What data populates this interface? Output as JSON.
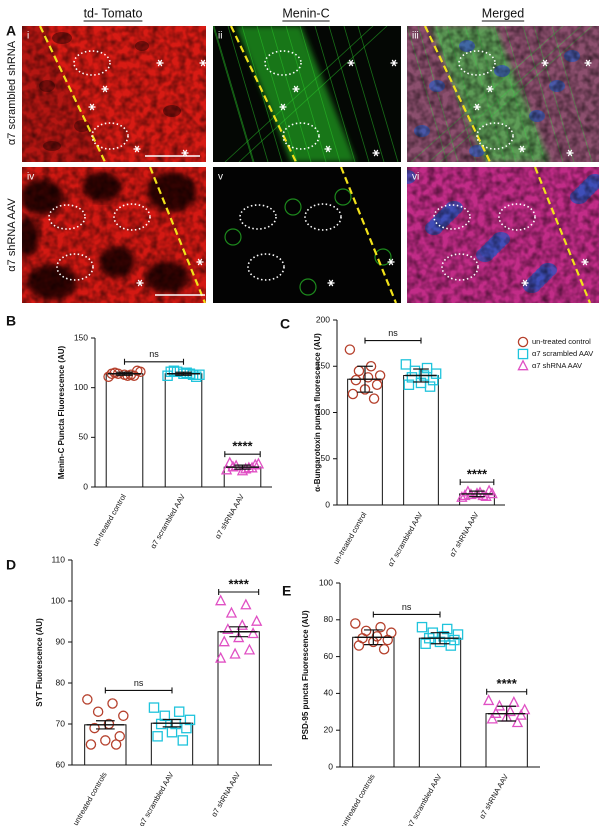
{
  "panel_a": {
    "label": "A",
    "columns": [
      "td- Tomato",
      "Menin-C",
      "Merged"
    ],
    "rows": [
      "α7 scrambled shRNA",
      "α7 shRNA AAV"
    ],
    "images": [
      "i",
      "ii",
      "iii",
      "iv",
      "v",
      "vi"
    ]
  },
  "chart_data": [
    {
      "type": "bar",
      "panel": "B",
      "ylabel": "Menin-C Puncta Fluorescence (AU)",
      "categories": [
        "un-treated control",
        "α7 scrambled AAV",
        "α7 shRNA AAV"
      ],
      "values": [
        114,
        114,
        20
      ],
      "errors": [
        1.5,
        1.5,
        2
      ],
      "points": [
        [
          111,
          113,
          114,
          116,
          112,
          115,
          117,
          113,
          114,
          112
        ],
        [
          112,
          114,
          116,
          113,
          115,
          117,
          111,
          114,
          116,
          113
        ],
        [
          17,
          19,
          21,
          23,
          18,
          20,
          22,
          16,
          24,
          19
        ]
      ],
      "markers": [
        "circle",
        "square",
        "triangle"
      ],
      "colors": [
        "#b5402c",
        "#1fc4dc",
        "#e050c4"
      ],
      "ylim": [
        0,
        150
      ],
      "yticks": [
        0,
        50,
        100,
        150
      ],
      "annotations": [
        "ns",
        "****"
      ]
    },
    {
      "type": "bar",
      "panel": "C",
      "ylabel": "α-Bungarotoxin puncta fluorescence (AU)",
      "categories": [
        "un-treated control",
        "α7 scrambled AAV",
        "α7 shRNA AAV"
      ],
      "values": [
        136,
        140,
        12
      ],
      "errors": [
        14,
        7,
        3
      ],
      "points": [
        [
          168,
          150,
          145,
          140,
          138,
          135,
          130,
          125,
          120,
          115
        ],
        [
          152,
          148,
          145,
          142,
          140,
          138,
          135,
          132,
          130,
          128
        ],
        [
          8,
          10,
          11,
          12,
          13,
          14,
          15,
          12,
          10,
          9
        ]
      ],
      "markers": [
        "circle",
        "square",
        "triangle"
      ],
      "colors": [
        "#b5402c",
        "#1fc4dc",
        "#e050c4"
      ],
      "ylim": [
        0,
        200
      ],
      "yticks": [
        0,
        50,
        100,
        150,
        200
      ],
      "annotations": [
        "ns",
        "****"
      ],
      "legend": {
        "position": "top-right",
        "labels": [
          "un-treated control",
          "α7 scrambled AAV",
          "α7 shRNA AAV"
        ]
      }
    },
    {
      "type": "bar",
      "panel": "D",
      "ylabel": "SYT Fluorescence (AU)",
      "categories": [
        "untreated controls",
        "α7 scrambled AAV",
        "α7 shRNA AAV"
      ],
      "values": [
        69.8,
        70.2,
        92.5
      ],
      "errors": [
        1,
        0.9,
        1.2
      ],
      "points": [
        [
          76,
          75,
          73,
          72,
          70,
          69,
          67,
          66,
          65,
          65
        ],
        [
          74,
          73,
          72,
          71,
          70,
          70,
          69,
          68,
          67,
          66
        ],
        [
          100,
          99,
          97,
          95,
          94,
          93,
          92,
          91,
          90,
          88,
          87,
          86
        ]
      ],
      "markers": [
        "circle",
        "square",
        "triangle"
      ],
      "colors": [
        "#b5402c",
        "#1fc4dc",
        "#e050c4"
      ],
      "ylim": [
        60,
        110
      ],
      "yticks": [
        60,
        70,
        80,
        90,
        100,
        110
      ],
      "annotations": [
        "ns",
        "****"
      ]
    },
    {
      "type": "bar",
      "panel": "E",
      "ylabel": "PSD-95 puncta Fluorescence (AU)",
      "categories": [
        "untreated controls",
        "α7 scrambled AAV",
        "α7 shRNA AAV"
      ],
      "values": [
        70.5,
        70,
        29
      ],
      "errors": [
        4,
        3,
        4
      ],
      "points": [
        [
          78,
          76,
          74,
          73,
          71,
          70,
          69,
          68,
          66,
          64
        ],
        [
          76,
          75,
          73,
          72,
          71,
          70,
          69,
          68,
          67,
          66
        ],
        [
          36,
          35,
          33,
          31,
          30,
          29,
          28,
          27,
          26,
          24
        ]
      ],
      "markers": [
        "circle",
        "square",
        "triangle"
      ],
      "colors": [
        "#b5402c",
        "#1fc4dc",
        "#e050c4"
      ],
      "ylim": [
        0,
        100
      ],
      "yticks": [
        0,
        20,
        40,
        60,
        80,
        100
      ],
      "annotations": [
        "ns",
        "****"
      ]
    }
  ]
}
